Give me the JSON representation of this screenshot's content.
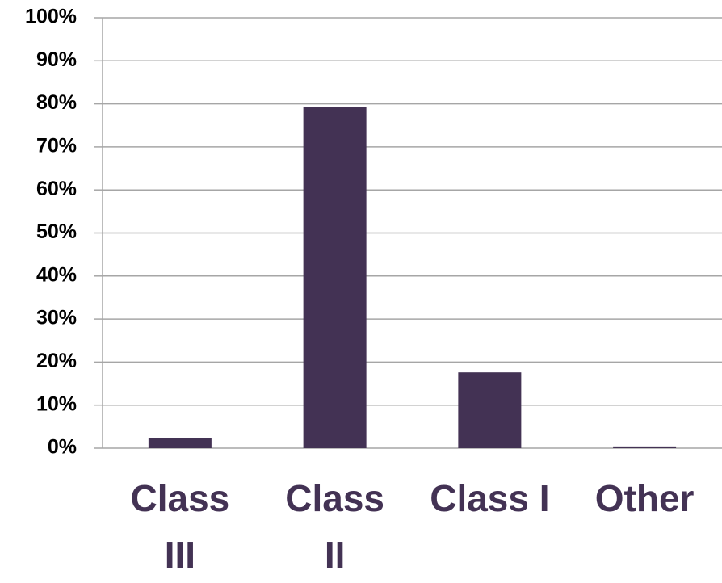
{
  "chart_data": {
    "type": "bar",
    "categories": [
      "Class III",
      "Class II",
      "Class I",
      "Other"
    ],
    "values": [
      2.3,
      79.2,
      17.6,
      0.4
    ],
    "color": "#433254",
    "ylim": [
      0,
      100
    ],
    "yticks": [
      {
        "value": 0,
        "label": "0%"
      },
      {
        "value": 10,
        "label": "10%"
      },
      {
        "value": 20,
        "label": "20%"
      },
      {
        "value": 30,
        "label": "30%"
      },
      {
        "value": 40,
        "label": "40%"
      },
      {
        "value": 50,
        "label": "50%"
      },
      {
        "value": 60,
        "label": "60%"
      },
      {
        "value": 70,
        "label": "70%"
      },
      {
        "value": 80,
        "label": "80%"
      },
      {
        "value": 90,
        "label": "90%"
      },
      {
        "value": 100,
        "label": "100%"
      }
    ],
    "grid": true
  }
}
